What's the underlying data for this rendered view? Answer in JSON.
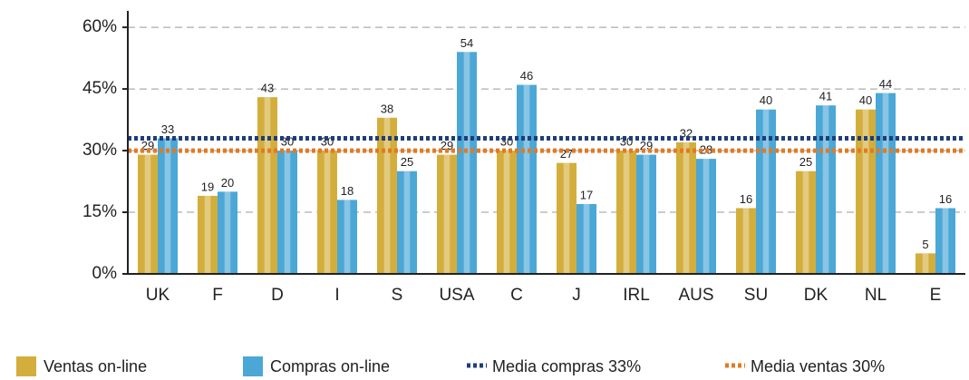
{
  "chart_data": {
    "type": "bar",
    "categories": [
      "UK",
      "F",
      "D",
      "I",
      "S",
      "USA",
      "C",
      "J",
      "IRL",
      "AUS",
      "SU",
      "DK",
      "NL",
      "E"
    ],
    "series": [
      {
        "name": "Ventas on-line",
        "color": "#d3ae3c",
        "values": [
          29,
          19,
          43,
          30,
          38,
          29,
          30,
          27,
          30,
          32,
          16,
          25,
          40,
          5
        ]
      },
      {
        "name": "Compras on-line",
        "color": "#4ba7d6",
        "values": [
          33,
          20,
          30,
          18,
          25,
          54,
          46,
          17,
          29,
          28,
          40,
          41,
          44,
          16
        ]
      }
    ],
    "reference_lines": [
      {
        "name": "Media compras 33%",
        "value": 33,
        "color": "#1f3d7a"
      },
      {
        "name": "Media ventas 30%",
        "value": 30,
        "color": "#e27a22"
      }
    ],
    "ylim": [
      0,
      64
    ],
    "yticks": [
      {
        "value": 0,
        "label": "0%"
      },
      {
        "value": 15,
        "label": "15%"
      },
      {
        "value": 30,
        "label": "30%"
      },
      {
        "value": 45,
        "label": "45%"
      },
      {
        "value": 60,
        "label": "60%"
      }
    ],
    "grid": true
  }
}
